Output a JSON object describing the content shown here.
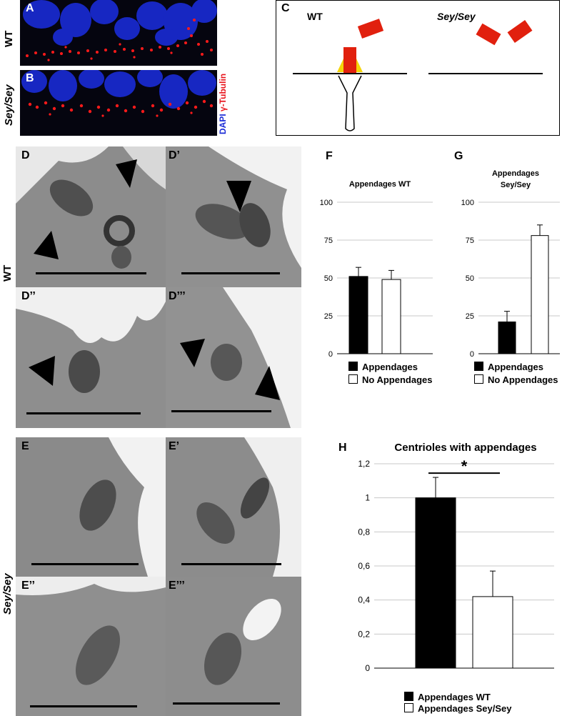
{
  "panels": {
    "A": "A",
    "B": "B",
    "C": "C",
    "D": "D",
    "D1": "D’",
    "D2": "D’’",
    "D3": "D’’’",
    "E": "E",
    "E1": "E’",
    "E2": "E’’",
    "E3": "E’’’",
    "F": "F",
    "G": "G",
    "H": "H"
  },
  "row_labels": {
    "wt_top": "WT",
    "sey_top": "Sey/Sey",
    "wt_em": "WT",
    "sey_em": "Sey/Sey"
  },
  "stain_labels": {
    "dapi": "DAPI",
    "tubulin": "γ-Tubulin"
  },
  "schematic": {
    "wt_label": "WT",
    "sey_label": "Sey/Sey"
  },
  "legend_FG": {
    "appendages": "Appendages",
    "no_appendages": "No Appendages"
  },
  "legend_H": {
    "wt": "Appendages WT",
    "sey": "Appendages Sey/Sey"
  },
  "colors": {
    "dapi": "#1a2bd6",
    "tubulin": "#e8131b",
    "schematic_red": "#e1200e",
    "schematic_yellow": "#f4d40a"
  },
  "chart_data": [
    {
      "id": "F",
      "type": "bar",
      "title": "Appendages WT",
      "categories": [
        "Appendages",
        "No Appendages"
      ],
      "values": [
        51,
        49
      ],
      "errors": [
        6,
        6
      ],
      "ylim": [
        0,
        100
      ],
      "yticks": [
        "0",
        "25",
        "50",
        "75",
        "100"
      ]
    },
    {
      "id": "G",
      "type": "bar",
      "title_lines": [
        "Appendages",
        "Sey/Sey"
      ],
      "categories": [
        "Appendages",
        "No Appendages"
      ],
      "values": [
        21,
        78
      ],
      "errors": [
        7,
        7
      ],
      "ylim": [
        0,
        100
      ],
      "yticks": [
        "0",
        "25",
        "50",
        "75",
        "100"
      ]
    },
    {
      "id": "H",
      "type": "bar",
      "title": "Centrioles with appendages",
      "categories": [
        "Appendages WT",
        "Appendages Sey/Sey"
      ],
      "values": [
        1,
        0.42
      ],
      "errors": [
        0.12,
        0.15
      ],
      "ylim": [
        0,
        1.2
      ],
      "yticks": [
        "0",
        "0,2",
        "0,4",
        "0,6",
        "0,8",
        "1",
        "1,2"
      ],
      "significance": "*"
    }
  ]
}
